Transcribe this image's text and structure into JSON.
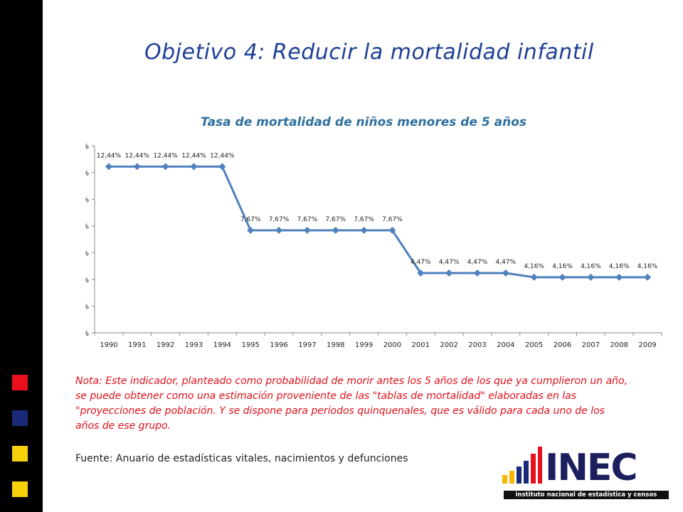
{
  "slide": {
    "title": "Objetivo 4: Reducir la mortalidad infantil",
    "note": "Nota: Este indicador,  planteado como probabilidad de morir antes los 5 años de los que ya cumplieron un año, se puede obtener como una estimación proveniente de las \"tablas de mortalidad\" elaboradas en las \"proyecciones de población. Y  se dispone para períodos quinquenales, que es válido para cada uno de los años de ese grupo.",
    "source": "Fuente: Anuario de estadísticas vitales, nacimientos y defunciones",
    "logo_main": "INEC",
    "logo_sub": "instituto nacional de estadística y censos"
  },
  "colors": {
    "line": "#4f81bd",
    "square_red": "#e8101a",
    "square_navy": "#1b2a78",
    "square_yellow": "#f5d20a"
  },
  "chart_data": {
    "type": "line",
    "title": "Tasa de mortalidad de niños menores de 5 años",
    "xlabel": "",
    "ylabel": "",
    "categories": [
      "1990",
      "1991",
      "1992",
      "1993",
      "1994",
      "1995",
      "1996",
      "1997",
      "1998",
      "1999",
      "2000",
      "2001",
      "2002",
      "2003",
      "2004",
      "2005",
      "2006",
      "2007",
      "2008",
      "2009"
    ],
    "values": [
      12.44,
      12.44,
      12.44,
      12.44,
      12.44,
      7.67,
      7.67,
      7.67,
      7.67,
      7.67,
      7.67,
      4.47,
      4.47,
      4.47,
      4.47,
      4.16,
      4.16,
      4.16,
      4.16,
      4.16
    ],
    "data_labels": [
      "12,44%",
      "12,44%",
      "12,44%",
      "12,44%",
      "12,44%",
      "7,67%",
      "7,67%",
      "7,67%",
      "7,67%",
      "7,67%",
      "7,67%",
      "4,47%",
      "4,47%",
      "4,47%",
      "4,47%",
      "4,16%",
      "4,16%",
      "4,16%",
      "4,16%",
      "4,16%"
    ],
    "y_ticks": [
      "0%",
      "2%",
      "4%",
      "6%",
      "8%",
      "10%",
      "12%",
      "14%"
    ],
    "ylim": [
      0,
      14
    ],
    "grid": false,
    "legend": "none",
    "marker": "diamond"
  }
}
